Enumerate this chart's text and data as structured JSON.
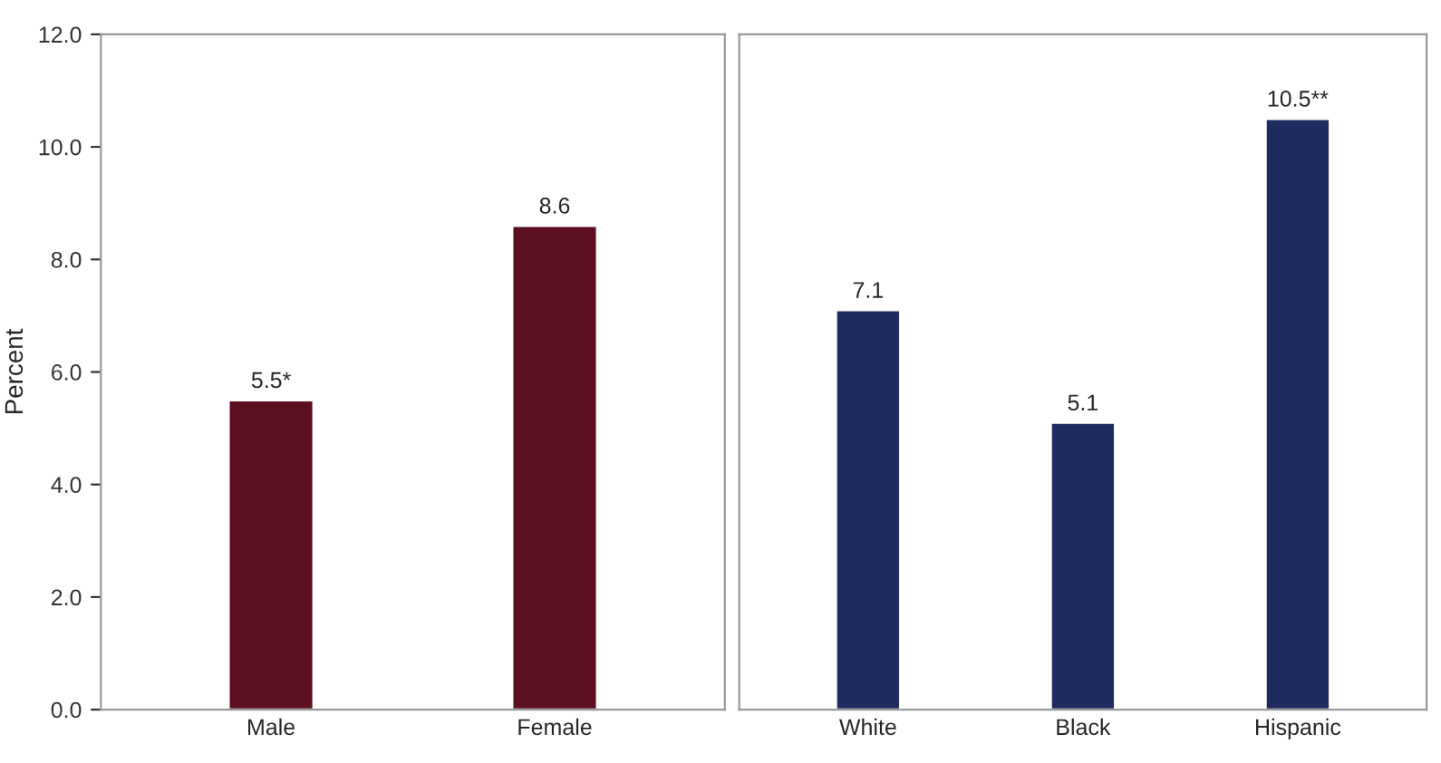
{
  "chart_data": [
    {
      "type": "bar",
      "ylabel": "Percent",
      "categories": [
        "Male",
        "Female"
      ],
      "values": [
        5.5,
        8.6
      ],
      "value_labels": [
        "5.5*",
        "8.6"
      ],
      "color": "#5b0f1f",
      "ylim": [
        0,
        12
      ],
      "yticks": [
        {
          "value": 0,
          "label": "0.0"
        },
        {
          "value": 2,
          "label": "2.0"
        },
        {
          "value": 4,
          "label": "4.0"
        },
        {
          "value": 6,
          "label": "6.0"
        },
        {
          "value": 8,
          "label": "8.0"
        },
        {
          "value": 10,
          "label": "10.0"
        },
        {
          "value": 12,
          "label": "12.0"
        }
      ],
      "grid": false
    },
    {
      "type": "bar",
      "categories": [
        "White",
        "Black",
        "Hispanic"
      ],
      "values": [
        7.1,
        5.1,
        10.5
      ],
      "value_labels": [
        "7.1",
        "5.1",
        "10.5**"
      ],
      "color": "#1f2a5e",
      "ylim": [
        0,
        12
      ],
      "yticks": [
        {
          "value": 0,
          "label": null
        },
        {
          "value": 2,
          "label": null
        },
        {
          "value": 4,
          "label": null
        },
        {
          "value": 6,
          "label": null
        },
        {
          "value": 8,
          "label": null
        },
        {
          "value": 10,
          "label": null
        },
        {
          "value": 12,
          "label": null
        }
      ],
      "tick_labels": "x",
      "grid": false
    }
  ]
}
